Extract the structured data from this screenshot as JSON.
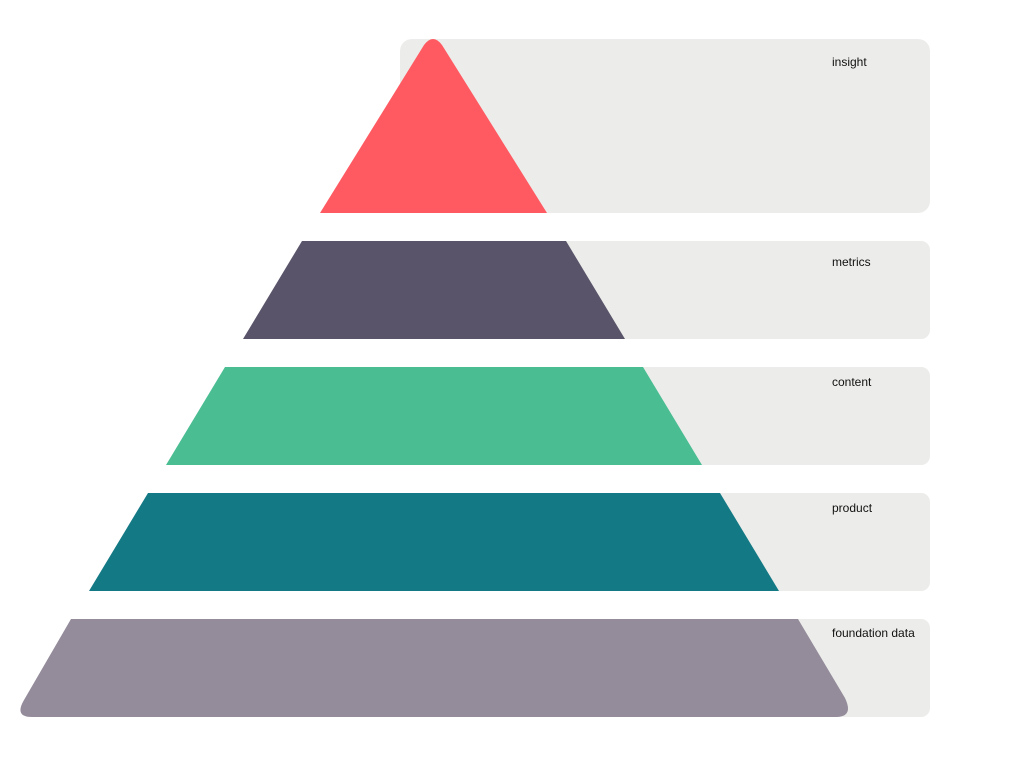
{
  "diagram": {
    "type": "pyramid",
    "panel_color": "#ecedea",
    "levels": [
      {
        "label": "insight",
        "color": "#ff5a62"
      },
      {
        "label": "metrics",
        "color": "#5a546a"
      },
      {
        "label": "content",
        "color": "#4abd93"
      },
      {
        "label": "product",
        "color": "#137984"
      },
      {
        "label": "foundation data",
        "color": "#948b9b"
      }
    ]
  }
}
